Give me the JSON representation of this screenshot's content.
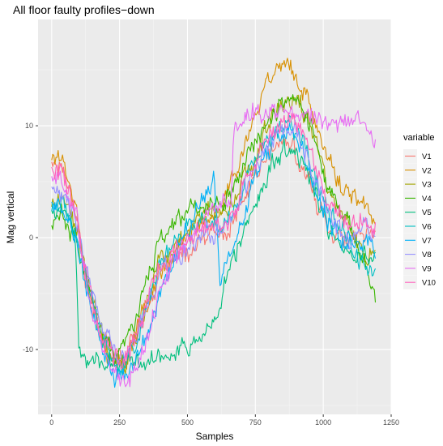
{
  "chart_data": {
    "type": "line",
    "title": "All floor faulty profiles−down",
    "xlabel": "Samples",
    "ylabel": "Mag vertical",
    "xlim": [
      -50,
      1250
    ],
    "ylim": [
      -15.8,
      19.5
    ],
    "x_ticks": [
      0,
      250,
      500,
      750,
      1000,
      1250
    ],
    "x_tick_labels": [
      "0",
      "250",
      "500",
      "750",
      "1000",
      "1250"
    ],
    "y_ticks": [
      -10,
      0,
      10
    ],
    "y_tick_labels": [
      "-10",
      "0",
      "10"
    ],
    "grid": true,
    "legend": {
      "title": "variable",
      "position": "right"
    },
    "background": "#ebebeb",
    "series": [
      {
        "name": "V1",
        "color": "#F8766D",
        "keypoints": [
          [
            0,
            6.8
          ],
          [
            40,
            6.5
          ],
          [
            90,
            2.5
          ],
          [
            130,
            -4.5
          ],
          [
            180,
            -8.5
          ],
          [
            230,
            -10.5
          ],
          [
            260,
            -10.8
          ],
          [
            300,
            -9
          ],
          [
            350,
            -6
          ],
          [
            400,
            -3.5
          ],
          [
            450,
            -2
          ],
          [
            500,
            -1.5
          ],
          [
            550,
            -0.5
          ],
          [
            600,
            0.5
          ],
          [
            640,
            0
          ],
          [
            700,
            3
          ],
          [
            760,
            6
          ],
          [
            820,
            8
          ],
          [
            860,
            8.5
          ],
          [
            890,
            8
          ],
          [
            920,
            6.5
          ],
          [
            960,
            4
          ],
          [
            1000,
            2
          ],
          [
            1040,
            0.5
          ],
          [
            1080,
            0
          ],
          [
            1120,
            -0.5
          ],
          [
            1160,
            0.5
          ],
          [
            1195,
            0.5
          ]
        ]
      },
      {
        "name": "V2",
        "color": "#D89000",
        "keypoints": [
          [
            0,
            7.5
          ],
          [
            40,
            7
          ],
          [
            90,
            3
          ],
          [
            130,
            -4.5
          ],
          [
            180,
            -9
          ],
          [
            230,
            -11.5
          ],
          [
            270,
            -11
          ],
          [
            320,
            -8
          ],
          [
            380,
            -4
          ],
          [
            430,
            -2
          ],
          [
            480,
            -0.5
          ],
          [
            530,
            0.5
          ],
          [
            580,
            1.5
          ],
          [
            620,
            2.5
          ],
          [
            680,
            6
          ],
          [
            740,
            11
          ],
          [
            790,
            14
          ],
          [
            830,
            15
          ],
          [
            860,
            15.5
          ],
          [
            890,
            15
          ],
          [
            920,
            13.5
          ],
          [
            960,
            11
          ],
          [
            1000,
            8
          ],
          [
            1040,
            5.5
          ],
          [
            1080,
            4
          ],
          [
            1120,
            3.5
          ],
          [
            1160,
            2.5
          ],
          [
            1195,
            1
          ]
        ]
      },
      {
        "name": "V3",
        "color": "#A3A500",
        "keypoints": [
          [
            0,
            3
          ],
          [
            40,
            3.5
          ],
          [
            90,
            1
          ],
          [
            130,
            -3.5
          ],
          [
            180,
            -8
          ],
          [
            230,
            -11
          ],
          [
            270,
            -11.5
          ],
          [
            310,
            -9
          ],
          [
            360,
            -5
          ],
          [
            410,
            -2
          ],
          [
            460,
            0
          ],
          [
            510,
            1
          ],
          [
            560,
            2
          ],
          [
            610,
            2
          ],
          [
            670,
            3
          ],
          [
            730,
            6
          ],
          [
            790,
            9.5
          ],
          [
            840,
            11.5
          ],
          [
            880,
            12.5
          ],
          [
            910,
            12
          ],
          [
            950,
            10
          ],
          [
            990,
            7
          ],
          [
            1030,
            4
          ],
          [
            1070,
            2
          ],
          [
            1110,
            0.5
          ],
          [
            1150,
            -1.5
          ],
          [
            1195,
            -2
          ]
        ]
      },
      {
        "name": "V4",
        "color": "#39B600",
        "keypoints": [
          [
            0,
            1
          ],
          [
            40,
            2
          ],
          [
            90,
            0
          ],
          [
            130,
            -4
          ],
          [
            180,
            -8.5
          ],
          [
            230,
            -10.5
          ],
          [
            270,
            -10
          ],
          [
            310,
            -7
          ],
          [
            360,
            -3
          ],
          [
            410,
            0
          ],
          [
            460,
            1.5
          ],
          [
            510,
            2.5
          ],
          [
            560,
            3
          ],
          [
            610,
            3.5
          ],
          [
            670,
            4.5
          ],
          [
            730,
            7.5
          ],
          [
            790,
            10.5
          ],
          [
            840,
            12
          ],
          [
            880,
            13
          ],
          [
            920,
            12
          ],
          [
            960,
            9.5
          ],
          [
            1000,
            6
          ],
          [
            1040,
            3.5
          ],
          [
            1080,
            2
          ],
          [
            1120,
            0
          ],
          [
            1160,
            -2.5
          ],
          [
            1195,
            -5
          ]
        ]
      },
      {
        "name": "V5",
        "color": "#00BF7D",
        "keypoints": [
          [
            0,
            2
          ],
          [
            40,
            3
          ],
          [
            85,
            1
          ],
          [
            100,
            -10
          ],
          [
            140,
            -11
          ],
          [
            180,
            -11
          ],
          [
            230,
            -11
          ],
          [
            280,
            -11
          ],
          [
            320,
            -11
          ],
          [
            370,
            -10.5
          ],
          [
            420,
            -10.5
          ],
          [
            460,
            -10
          ],
          [
            500,
            -9.5
          ],
          [
            540,
            -9
          ],
          [
            580,
            -8.5
          ],
          [
            610,
            -7
          ],
          [
            650,
            -3
          ],
          [
            700,
            0
          ],
          [
            760,
            4
          ],
          [
            820,
            7
          ],
          [
            860,
            8
          ],
          [
            900,
            7.5
          ],
          [
            940,
            6
          ],
          [
            980,
            3.5
          ],
          [
            1020,
            1
          ],
          [
            1060,
            -0.5
          ],
          [
            1100,
            -1.5
          ],
          [
            1140,
            -2
          ],
          [
            1170,
            -2
          ],
          [
            1195,
            -2
          ]
        ]
      },
      {
        "name": "V6",
        "color": "#00BFC4",
        "keypoints": [
          [
            0,
            2.5
          ],
          [
            40,
            3
          ],
          [
            90,
            0.5
          ],
          [
            130,
            -4
          ],
          [
            180,
            -8.5
          ],
          [
            230,
            -11
          ],
          [
            270,
            -11.5
          ],
          [
            310,
            -9.5
          ],
          [
            360,
            -5.5
          ],
          [
            410,
            -2
          ],
          [
            460,
            0
          ],
          [
            510,
            1
          ],
          [
            560,
            1.5
          ],
          [
            610,
            1
          ],
          [
            660,
            2
          ],
          [
            720,
            5.5
          ],
          [
            780,
            8.5
          ],
          [
            830,
            10
          ],
          [
            870,
            10.5
          ],
          [
            910,
            9.5
          ],
          [
            950,
            7
          ],
          [
            990,
            4
          ],
          [
            1030,
            2
          ],
          [
            1070,
            0.5
          ],
          [
            1110,
            -1
          ],
          [
            1150,
            -2.5
          ],
          [
            1195,
            -3
          ]
        ]
      },
      {
        "name": "V7",
        "color": "#00B0F6",
        "keypoints": [
          [
            0,
            3
          ],
          [
            40,
            2.5
          ],
          [
            90,
            0
          ],
          [
            130,
            -5
          ],
          [
            180,
            -9.5
          ],
          [
            230,
            -12
          ],
          [
            270,
            -12.5
          ],
          [
            310,
            -11
          ],
          [
            360,
            -8
          ],
          [
            410,
            -4.5
          ],
          [
            460,
            -1.5
          ],
          [
            500,
            0.5
          ],
          [
            540,
            2.5
          ],
          [
            580,
            4
          ],
          [
            600,
            5.5
          ],
          [
            620,
            -4
          ],
          [
            660,
            -1.5
          ],
          [
            720,
            3
          ],
          [
            780,
            7
          ],
          [
            830,
            9
          ],
          [
            870,
            9.5
          ],
          [
            910,
            8.5
          ],
          [
            950,
            6
          ],
          [
            990,
            3
          ],
          [
            1030,
            1
          ],
          [
            1070,
            -0.5
          ],
          [
            1110,
            -1
          ],
          [
            1150,
            -0.5
          ],
          [
            1195,
            -1
          ]
        ]
      },
      {
        "name": "V8",
        "color": "#9590FF",
        "keypoints": [
          [
            0,
            4
          ],
          [
            40,
            3.5
          ],
          [
            90,
            1.5
          ],
          [
            130,
            -3
          ],
          [
            180,
            -7.5
          ],
          [
            230,
            -10.5
          ],
          [
            270,
            -11
          ],
          [
            310,
            -9.5
          ],
          [
            360,
            -6
          ],
          [
            410,
            -3
          ],
          [
            460,
            -1.5
          ],
          [
            510,
            -0.5
          ],
          [
            560,
            0.5
          ],
          [
            610,
            0.5
          ],
          [
            660,
            1.5
          ],
          [
            720,
            5
          ],
          [
            780,
            8
          ],
          [
            830,
            9.5
          ],
          [
            870,
            10
          ],
          [
            910,
            9
          ],
          [
            950,
            6.5
          ],
          [
            990,
            4
          ],
          [
            1030,
            2
          ],
          [
            1070,
            0.5
          ],
          [
            1110,
            0
          ],
          [
            1150,
            0.5
          ],
          [
            1195,
            0.5
          ]
        ]
      },
      {
        "name": "V9",
        "color": "#E76BF3",
        "keypoints": [
          [
            0,
            5.5
          ],
          [
            40,
            5
          ],
          [
            90,
            2
          ],
          [
            130,
            -4.5
          ],
          [
            180,
            -9.5
          ],
          [
            230,
            -12
          ],
          [
            270,
            -13
          ],
          [
            310,
            -12
          ],
          [
            360,
            -8
          ],
          [
            410,
            -4
          ],
          [
            460,
            -1.5
          ],
          [
            510,
            0
          ],
          [
            560,
            1.5
          ],
          [
            610,
            2.5
          ],
          [
            660,
            3.5
          ],
          [
            670,
            10
          ],
          [
            720,
            11
          ],
          [
            780,
            11
          ],
          [
            830,
            11
          ],
          [
            870,
            11.5
          ],
          [
            910,
            11
          ],
          [
            950,
            10.5
          ],
          [
            990,
            10.5
          ],
          [
            1030,
            10.5
          ],
          [
            1070,
            10.5
          ],
          [
            1110,
            10
          ],
          [
            1150,
            10
          ],
          [
            1195,
            8.5
          ]
        ]
      },
      {
        "name": "V10",
        "color": "#FF62BC",
        "keypoints": [
          [
            0,
            6
          ],
          [
            40,
            5.5
          ],
          [
            90,
            2
          ],
          [
            130,
            -3.5
          ],
          [
            180,
            -8.5
          ],
          [
            230,
            -11
          ],
          [
            270,
            -11
          ],
          [
            310,
            -8.5
          ],
          [
            360,
            -5
          ],
          [
            410,
            -2.5
          ],
          [
            460,
            -1
          ],
          [
            510,
            0
          ],
          [
            560,
            1
          ],
          [
            610,
            1
          ],
          [
            660,
            2
          ],
          [
            720,
            5.5
          ],
          [
            780,
            8.5
          ],
          [
            830,
            10
          ],
          [
            870,
            10.5
          ],
          [
            910,
            9.5
          ],
          [
            950,
            7.5
          ],
          [
            990,
            5
          ],
          [
            1030,
            3
          ],
          [
            1070,
            1.5
          ],
          [
            1110,
            1
          ],
          [
            1150,
            1
          ],
          [
            1195,
            0.5
          ]
        ]
      }
    ]
  }
}
